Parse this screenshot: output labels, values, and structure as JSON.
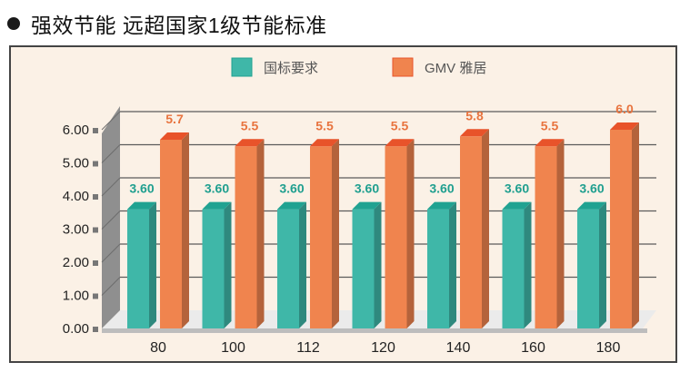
{
  "heading": {
    "bullet_icon": "bullet-dot-icon",
    "text": "强效节能 远超国家1级节能标准"
  },
  "colors": {
    "national": "#3fb7a8",
    "national_top": "#21a291",
    "gmv": "#f0844e",
    "gmv_top": "#e8532a",
    "frame_bg": "#fbf1e6"
  },
  "chart_data": {
    "type": "bar",
    "categories": [
      "80",
      "100",
      "112",
      "120",
      "140",
      "160",
      "180"
    ],
    "series": [
      {
        "name": "国标要求",
        "values": [
          3.6,
          3.6,
          3.6,
          3.6,
          3.6,
          3.6,
          3.6
        ],
        "labels": [
          "3.60",
          "3.60",
          "3.60",
          "3.60",
          "3.60",
          "3.60",
          "3.60"
        ]
      },
      {
        "name": "GMV 雅居",
        "values": [
          5.7,
          5.5,
          5.5,
          5.5,
          5.8,
          5.5,
          6.0
        ],
        "labels": [
          "5.7",
          "5.5",
          "5.5",
          "5.5",
          "5.8",
          "5.5",
          "6.0"
        ]
      }
    ],
    "yticks": [
      "0.00",
      "1.00",
      "2.00",
      "3.00",
      "4.00",
      "5.00",
      "6.00"
    ],
    "ylim": [
      0,
      6
    ],
    "grid": true,
    "legend": "top",
    "title": "",
    "xlabel": "",
    "ylabel": ""
  }
}
